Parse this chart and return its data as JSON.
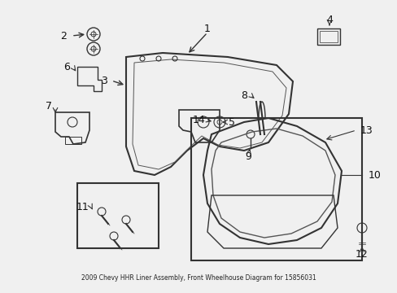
{
  "title": "2009 Chevy HHR Liner Assembly, Front Wheelhouse Diagram for 15856031",
  "bg_color": "#f0f0f0",
  "border_color": "#cccccc",
  "line_color": "#333333",
  "text_color": "#111111",
  "figsize": [
    4.89,
    3.6
  ],
  "dpi": 100
}
